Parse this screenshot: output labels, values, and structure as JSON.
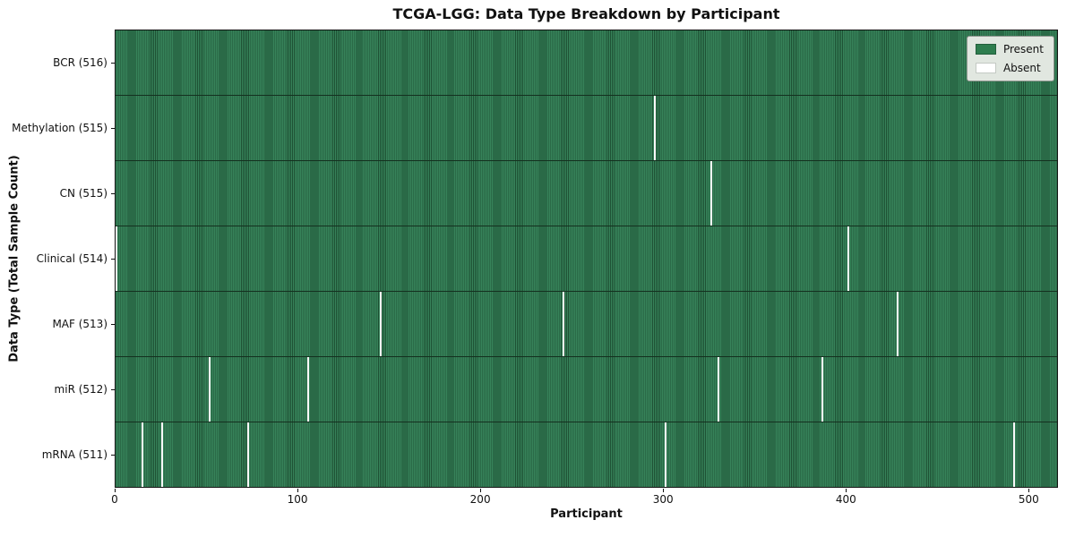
{
  "title": "TCGA-LGG: Data Type Breakdown by Participant",
  "colors": {
    "present": "#2e7d4e",
    "present_stripe_dark": "#1e5134",
    "absent": "#ffffff",
    "legend_background": "#e1e7e0",
    "figure_background": "#ffffff"
  },
  "chart_data": {
    "type": "heatmap",
    "title": "TCGA-LGG: Data Type Breakdown by Participant",
    "xlabel": "Participant",
    "ylabel": "Data Type (Total Sample Count)",
    "legend": [
      "Present",
      "Absent"
    ],
    "legend_position": "upper right",
    "grid": false,
    "total_participants": 516,
    "xlim": [
      0,
      516
    ],
    "x_ticks": [
      0,
      100,
      200,
      300,
      400,
      500
    ],
    "rows": [
      {
        "label": "BCR (516)",
        "present_count": 516,
        "absent_participants": []
      },
      {
        "label": "Methylation (515)",
        "present_count": 515,
        "absent_participants": [
          295
        ]
      },
      {
        "label": "CN (515)",
        "present_count": 515,
        "absent_participants": [
          326
        ]
      },
      {
        "label": "Clinical (514)",
        "present_count": 514,
        "absent_participants": [
          0,
          401
        ]
      },
      {
        "label": "MAF (513)",
        "present_count": 513,
        "absent_participants": [
          145,
          245,
          428
        ]
      },
      {
        "label": "miR (512)",
        "present_count": 512,
        "absent_participants": [
          51,
          105,
          330,
          387
        ]
      },
      {
        "label": "mRNA (511)",
        "present_count": 511,
        "absent_participants": [
          14,
          25,
          72,
          301,
          492
        ]
      }
    ]
  }
}
